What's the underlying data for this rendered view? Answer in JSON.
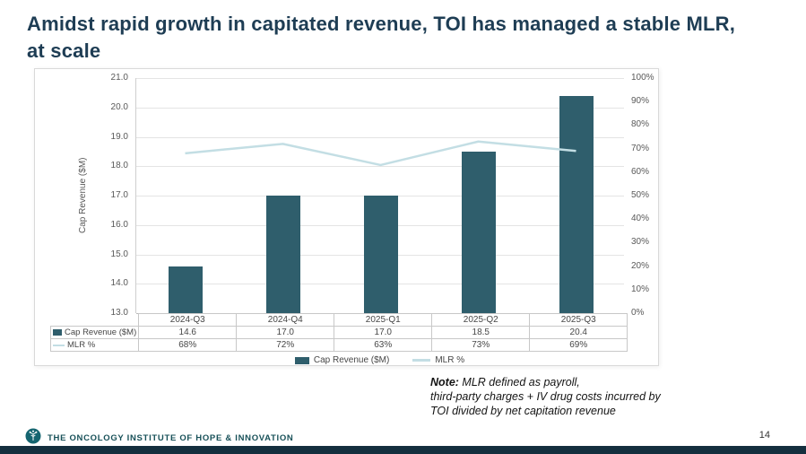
{
  "slide": {
    "title_lines": [
      "Amidst rapid growth in capitated revenue, TOI has managed a stable MLR,",
      "at scale"
    ],
    "note": {
      "label": "Note:",
      "lines": [
        " MLR defined as payroll,",
        "third-party charges + IV drug costs incurred by",
        "TOI divided by net capitation revenue"
      ]
    },
    "footer": {
      "brand": "THE ONCOLOGY INSTITUTE OF HOPE & INNOVATION",
      "logo_icon": "toi-tree-logo",
      "page_number": "14"
    },
    "colors": {
      "title": "#1e3d54",
      "bar": "#2f5e6c",
      "line": "#c3dee4",
      "footer_bar": "#142f3e",
      "brand_teal": "#156570"
    }
  },
  "chart_data": {
    "type": "bar",
    "subtype": "combo-bar-line",
    "categories": [
      "2024-Q3",
      "2024-Q4",
      "2025-Q1",
      "2025-Q2",
      "2025-Q3"
    ],
    "series": [
      {
        "name": "Cap Revenue ($M)",
        "type": "bar",
        "axis": "left",
        "color": "#2f5e6c",
        "values": [
          14.6,
          17.0,
          17.0,
          18.5,
          20.4
        ],
        "labels": [
          "14.6",
          "17.0",
          "17.0",
          "18.5",
          "20.4"
        ]
      },
      {
        "name": "MLR %",
        "type": "line",
        "axis": "right",
        "color": "#c3dee4",
        "values": [
          68,
          72,
          63,
          73,
          69
        ],
        "labels": [
          "68%",
          "72%",
          "63%",
          "73%",
          "69%"
        ]
      }
    ],
    "left_axis": {
      "label": "Cap Revenue ($M)",
      "min": 13.0,
      "max": 21.0,
      "step": 1.0
    },
    "right_axis": {
      "min": 0,
      "max": 100,
      "step": 10
    },
    "grid": true,
    "legend_position": "bottom",
    "data_table": true
  }
}
